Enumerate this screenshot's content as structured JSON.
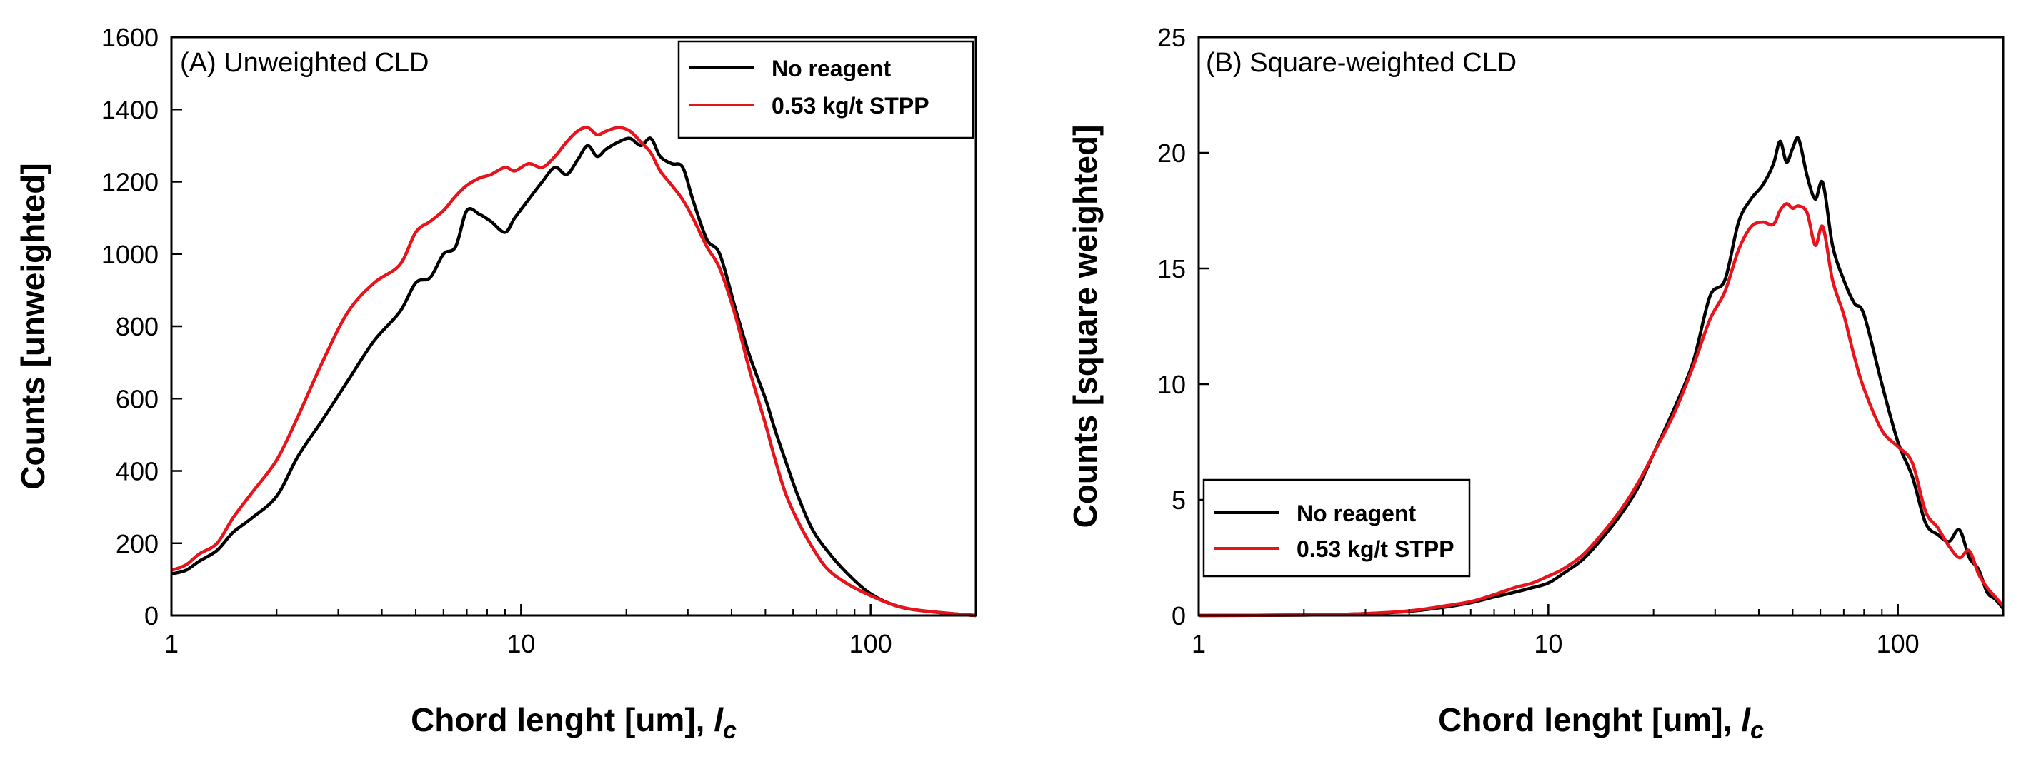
{
  "chart_data": [
    {
      "type": "line",
      "title": "(A) Unweighted CLD",
      "xlabel": "Chord lenght [um], ",
      "xlabel_symbol": "l",
      "xlabel_subscript": "c",
      "ylabel": "Counts [unweighted]",
      "xscale": "log",
      "xlim": [
        1,
        200
      ],
      "ylim": [
        0,
        1600
      ],
      "x_ticks": [
        1,
        10,
        100
      ],
      "x_tick_labels": [
        "1",
        "10",
        "100"
      ],
      "y_ticks": [
        0,
        200,
        400,
        600,
        800,
        1000,
        1200,
        1400,
        1600
      ],
      "y_tick_labels": [
        "0",
        "200",
        "400",
        "600",
        "800",
        "1000",
        "1200",
        "1400",
        "1600"
      ],
      "legend_position": "top-right",
      "series": [
        {
          "name": "No reagent",
          "color": "#000000",
          "x": [
            1.0,
            1.1,
            1.2,
            1.35,
            1.5,
            1.7,
            2.0,
            2.3,
            2.7,
            3.2,
            3.8,
            4.5,
            5.0,
            5.5,
            6.0,
            6.5,
            7.0,
            7.6,
            8.2,
            9.0,
            9.6,
            10.5,
            11.5,
            12.5,
            13.5,
            14.5,
            15.5,
            16.5,
            17.5,
            19.0,
            20.5,
            22.0,
            23.5,
            25.0,
            27.0,
            29.0,
            31.0,
            34.0,
            37.0,
            41.0,
            45.0,
            50.0,
            53.0,
            57.0,
            62.0,
            68.0,
            75.0,
            85.0,
            100.0,
            120.0,
            150.0,
            200.0
          ],
          "values": [
            115,
            125,
            150,
            180,
            230,
            270,
            330,
            440,
            540,
            650,
            760,
            840,
            920,
            935,
            1000,
            1020,
            1120,
            1110,
            1090,
            1060,
            1100,
            1150,
            1200,
            1240,
            1220,
            1260,
            1300,
            1270,
            1290,
            1310,
            1320,
            1300,
            1320,
            1270,
            1250,
            1240,
            1150,
            1040,
            1000,
            850,
            720,
            600,
            520,
            430,
            330,
            240,
            180,
            120,
            60,
            25,
            10,
            0
          ]
        },
        {
          "name": "0.53 kg/t STPP",
          "color": "#e8141c",
          "x": [
            1.0,
            1.1,
            1.2,
            1.35,
            1.5,
            1.7,
            2.0,
            2.3,
            2.7,
            3.2,
            3.8,
            4.5,
            5.0,
            5.5,
            6.0,
            6.5,
            7.0,
            7.6,
            8.2,
            9.0,
            9.6,
            10.5,
            11.5,
            12.5,
            13.5,
            14.5,
            15.5,
            16.5,
            17.5,
            19.0,
            20.5,
            22.0,
            23.5,
            25.0,
            27.0,
            29.0,
            31.0,
            34.0,
            37.0,
            41.0,
            45.0,
            50.0,
            53.0,
            57.0,
            62.0,
            68.0,
            75.0,
            85.0,
            100.0,
            120.0,
            150.0,
            200.0
          ],
          "values": [
            125,
            140,
            170,
            200,
            270,
            340,
            430,
            550,
            700,
            840,
            920,
            970,
            1060,
            1090,
            1120,
            1160,
            1190,
            1210,
            1220,
            1240,
            1230,
            1250,
            1240,
            1270,
            1310,
            1340,
            1350,
            1330,
            1340,
            1350,
            1340,
            1310,
            1280,
            1230,
            1190,
            1150,
            1100,
            1020,
            960,
            830,
            680,
            530,
            440,
            340,
            260,
            190,
            130,
            90,
            55,
            25,
            10,
            0
          ]
        }
      ]
    },
    {
      "type": "line",
      "title": "(B) Square-weighted CLD",
      "xlabel": "Chord lenght [um], ",
      "xlabel_symbol": "l",
      "xlabel_subscript": "c",
      "ylabel": "Counts [square weighted]",
      "xscale": "log",
      "xlim": [
        1,
        200
      ],
      "ylim": [
        0,
        25
      ],
      "x_ticks": [
        1,
        10,
        100
      ],
      "x_tick_labels": [
        "1",
        "10",
        "100"
      ],
      "y_ticks": [
        0,
        5,
        10,
        15,
        20,
        25
      ],
      "y_tick_labels": [
        "0",
        "5",
        "10",
        "15",
        "20",
        "25"
      ],
      "legend_position": "bottom-left",
      "series": [
        {
          "name": "No reagent",
          "color": "#000000",
          "x": [
            1.0,
            2.0,
            3.0,
            4.0,
            5.0,
            6.0,
            7.0,
            8.0,
            9.0,
            10.0,
            11.0,
            12.5,
            14.0,
            16.0,
            18.0,
            20.0,
            23.0,
            26.0,
            29.0,
            32.0,
            35.0,
            38.0,
            41.0,
            44.0,
            46.0,
            48.0,
            50.0,
            52.0,
            55.0,
            58.0,
            61.0,
            65.0,
            70.0,
            75.0,
            80.0,
            90.0,
            100.0,
            110.0,
            120.0,
            130.0,
            140.0,
            150.0,
            160.0,
            170.0,
            180.0,
            190.0,
            200.0
          ],
          "values": [
            0.0,
            0.02,
            0.08,
            0.18,
            0.35,
            0.55,
            0.8,
            1.0,
            1.2,
            1.4,
            1.8,
            2.4,
            3.2,
            4.3,
            5.5,
            7.0,
            9.0,
            11.0,
            13.8,
            14.5,
            17.0,
            18.0,
            18.6,
            19.5,
            20.5,
            19.6,
            20.2,
            20.6,
            19.0,
            18.0,
            18.7,
            16.0,
            14.5,
            13.5,
            13.0,
            10.0,
            7.5,
            6.0,
            4.0,
            3.5,
            3.2,
            3.7,
            2.5,
            2.0,
            1.0,
            0.7,
            0.3
          ]
        },
        {
          "name": "0.53 kg/t STPP",
          "color": "#e8141c",
          "x": [
            1.0,
            2.0,
            3.0,
            4.0,
            5.0,
            6.0,
            7.0,
            8.0,
            9.0,
            10.0,
            11.0,
            12.5,
            14.0,
            16.0,
            18.0,
            20.0,
            23.0,
            26.0,
            29.0,
            32.0,
            35.0,
            38.0,
            41.0,
            44.0,
            46.0,
            48.0,
            50.0,
            52.0,
            55.0,
            58.0,
            61.0,
            65.0,
            70.0,
            75.0,
            80.0,
            90.0,
            100.0,
            110.0,
            120.0,
            130.0,
            140.0,
            150.0,
            160.0,
            170.0,
            180.0,
            190.0,
            200.0
          ],
          "values": [
            0.0,
            0.02,
            0.08,
            0.2,
            0.4,
            0.6,
            0.9,
            1.2,
            1.4,
            1.7,
            2.0,
            2.6,
            3.4,
            4.5,
            5.7,
            7.0,
            8.8,
            10.8,
            12.8,
            14.0,
            15.8,
            16.8,
            17.0,
            16.9,
            17.5,
            17.8,
            17.6,
            17.7,
            17.4,
            16.0,
            16.8,
            14.5,
            13.0,
            11.2,
            9.8,
            8.0,
            7.3,
            6.6,
            4.5,
            3.8,
            3.0,
            2.5,
            2.8,
            1.8,
            1.2,
            0.8,
            0.4
          ]
        }
      ]
    }
  ]
}
